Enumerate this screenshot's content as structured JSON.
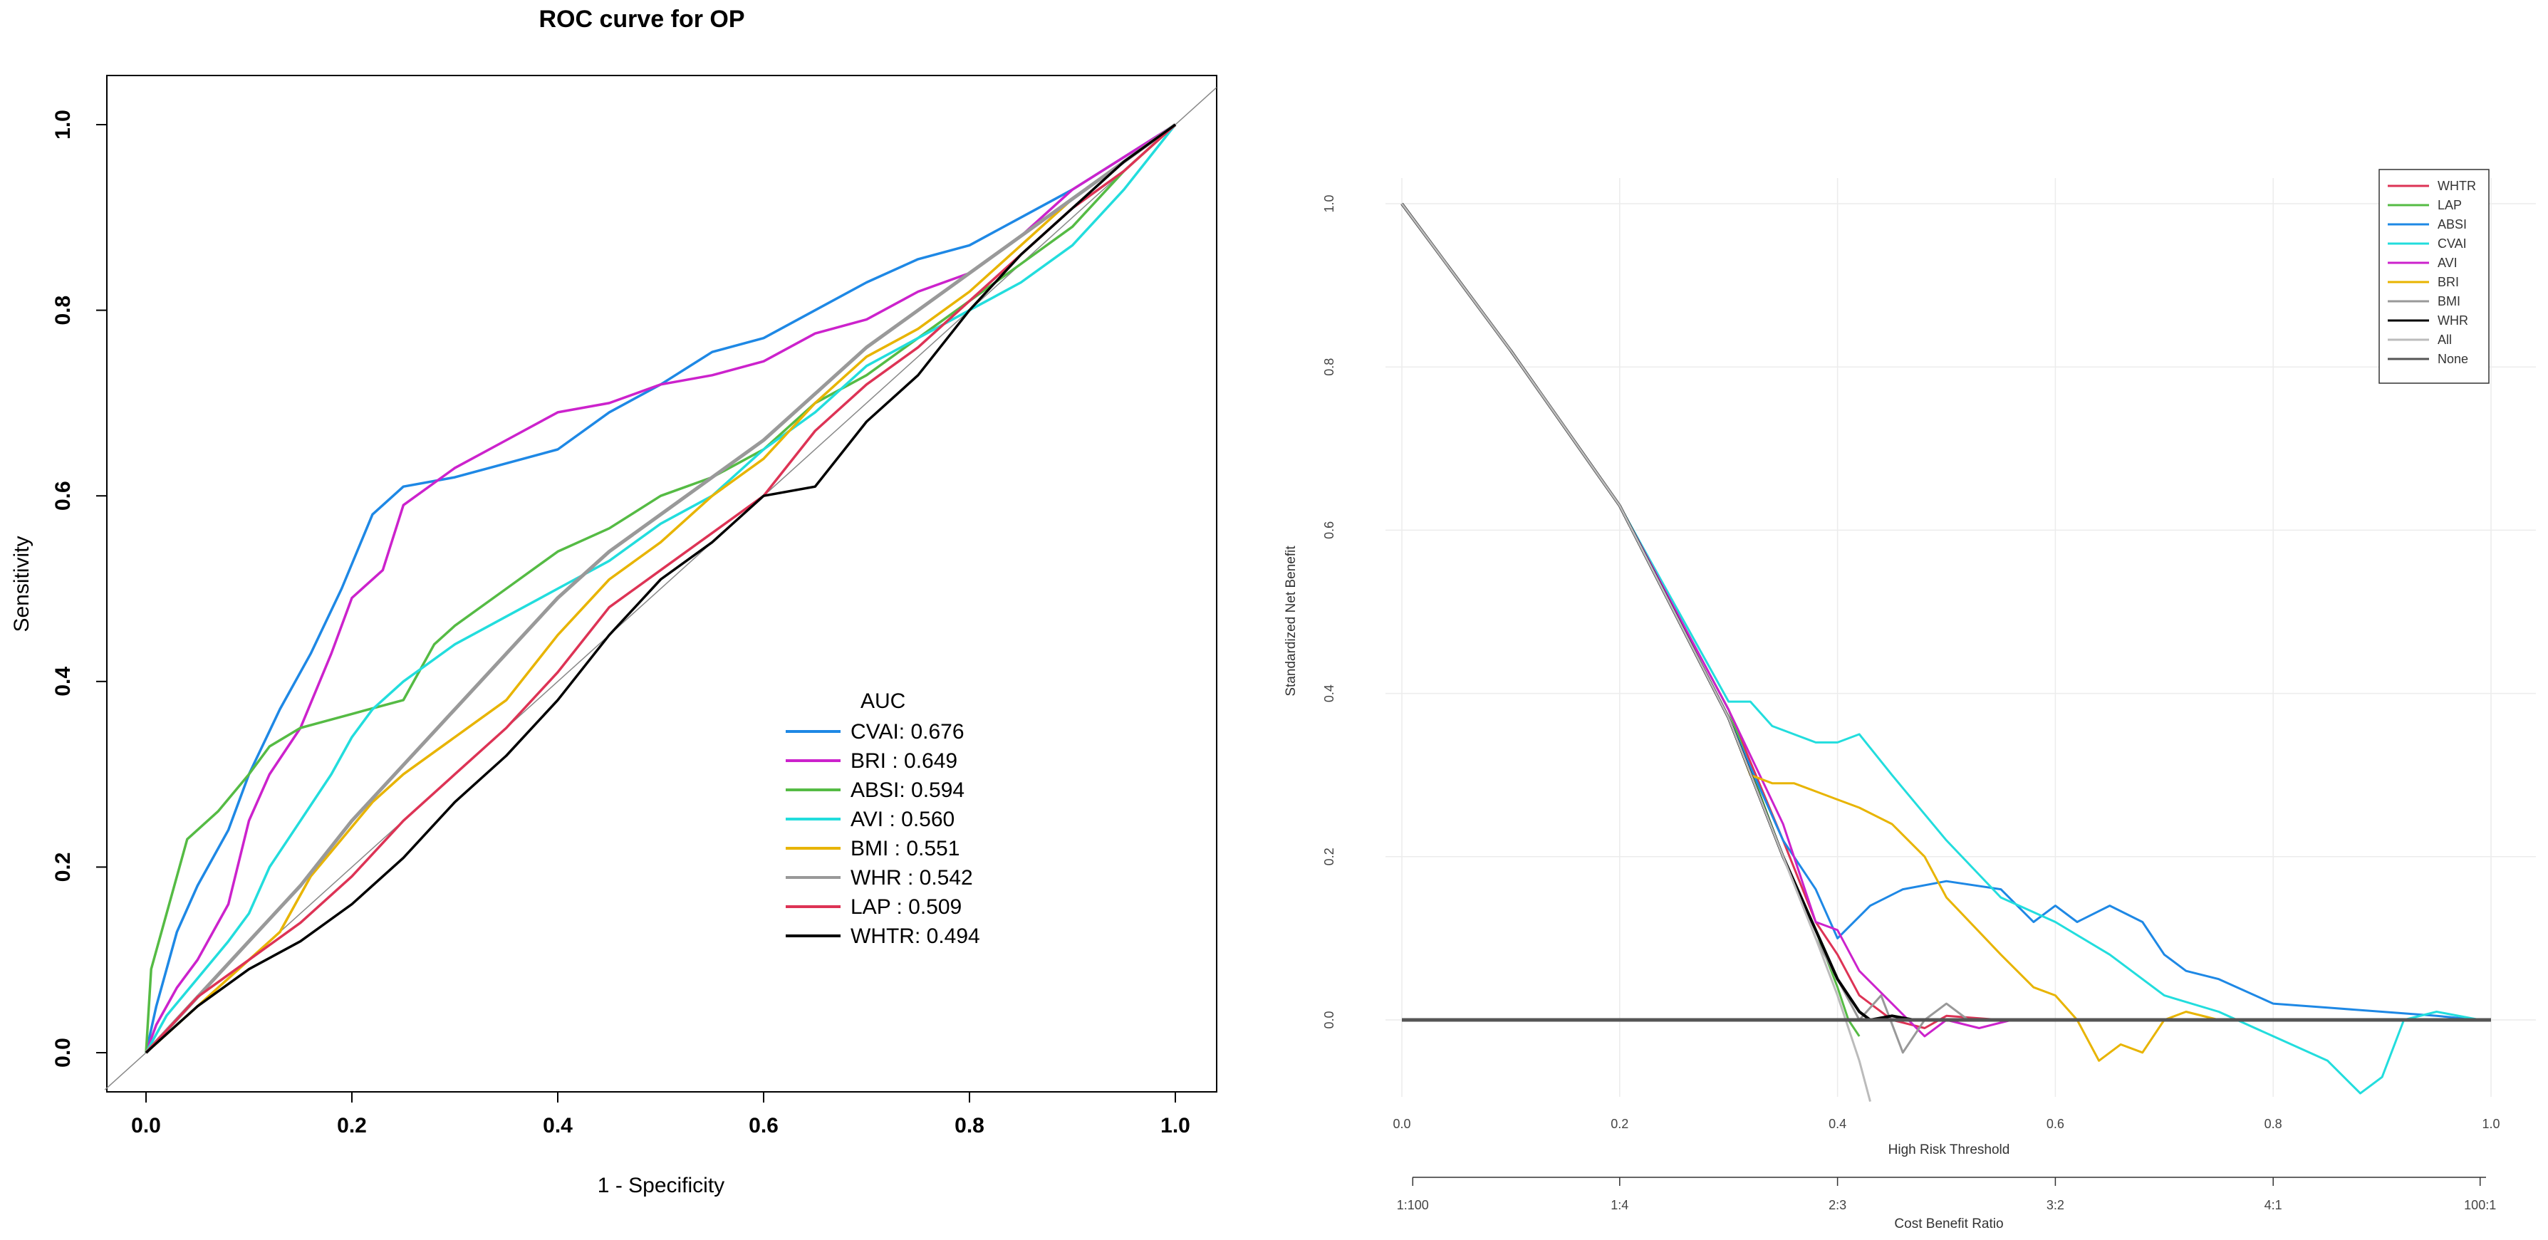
{
  "chart_data": [
    {
      "type": "line",
      "title": "ROC curve for OP",
      "xlabel": "1 - Specificity",
      "ylabel": "Sensitivity",
      "xlim": [
        0,
        1
      ],
      "ylim": [
        0,
        1
      ],
      "xticks": [
        "0.0",
        "0.2",
        "0.4",
        "0.6",
        "0.8",
        "1.0"
      ],
      "yticks": [
        "0.0",
        "0.2",
        "0.4",
        "0.6",
        "0.8",
        "1.0"
      ],
      "legend_title": "AUC",
      "legend_position": "bottom-right",
      "series": [
        {
          "name": "CVAI",
          "label": "CVAI: 0.676",
          "color": "#1e88e5",
          "x": [
            0,
            0.01,
            0.03,
            0.05,
            0.08,
            0.1,
            0.13,
            0.16,
            0.19,
            0.22,
            0.25,
            0.3,
            0.35,
            0.4,
            0.45,
            0.5,
            0.55,
            0.6,
            0.65,
            0.7,
            0.75,
            0.8,
            0.85,
            0.9,
            0.95,
            1.0
          ],
          "y": [
            0,
            0.05,
            0.13,
            0.18,
            0.24,
            0.3,
            0.37,
            0.43,
            0.5,
            0.58,
            0.61,
            0.62,
            0.635,
            0.65,
            0.69,
            0.72,
            0.755,
            0.77,
            0.8,
            0.83,
            0.855,
            0.87,
            0.9,
            0.93,
            0.965,
            1.0
          ]
        },
        {
          "name": "BRI",
          "label": "BRI : 0.649",
          "color": "#cc22cc",
          "x": [
            0,
            0.01,
            0.03,
            0.05,
            0.08,
            0.1,
            0.12,
            0.15,
            0.18,
            0.2,
            0.23,
            0.25,
            0.3,
            0.35,
            0.4,
            0.45,
            0.5,
            0.55,
            0.6,
            0.65,
            0.7,
            0.75,
            0.8,
            0.85,
            0.9,
            0.95,
            1.0
          ],
          "y": [
            0,
            0.03,
            0.07,
            0.1,
            0.16,
            0.25,
            0.3,
            0.35,
            0.43,
            0.49,
            0.52,
            0.59,
            0.63,
            0.66,
            0.69,
            0.7,
            0.72,
            0.73,
            0.745,
            0.775,
            0.79,
            0.82,
            0.84,
            0.88,
            0.93,
            0.965,
            1.0
          ]
        },
        {
          "name": "ABSI",
          "label": "ABSI: 0.594",
          "color": "#55bb44",
          "x": [
            0,
            0.005,
            0.02,
            0.04,
            0.07,
            0.1,
            0.12,
            0.15,
            0.2,
            0.25,
            0.28,
            0.3,
            0.35,
            0.4,
            0.45,
            0.5,
            0.55,
            0.6,
            0.65,
            0.7,
            0.75,
            0.8,
            0.85,
            0.9,
            0.95,
            1.0
          ],
          "y": [
            0,
            0.09,
            0.15,
            0.23,
            0.26,
            0.3,
            0.33,
            0.35,
            0.365,
            0.38,
            0.44,
            0.46,
            0.5,
            0.54,
            0.565,
            0.6,
            0.62,
            0.65,
            0.7,
            0.73,
            0.77,
            0.81,
            0.85,
            0.89,
            0.95,
            1.0
          ]
        },
        {
          "name": "AVI",
          "label": "AVI : 0.560",
          "color": "#22dddd",
          "x": [
            0,
            0.02,
            0.05,
            0.08,
            0.1,
            0.12,
            0.15,
            0.18,
            0.2,
            0.22,
            0.25,
            0.3,
            0.35,
            0.4,
            0.45,
            0.5,
            0.55,
            0.6,
            0.65,
            0.7,
            0.75,
            0.8,
            0.85,
            0.9,
            0.95,
            1.0
          ],
          "y": [
            0,
            0.04,
            0.08,
            0.12,
            0.15,
            0.2,
            0.25,
            0.3,
            0.34,
            0.37,
            0.4,
            0.44,
            0.47,
            0.5,
            0.53,
            0.57,
            0.6,
            0.65,
            0.69,
            0.74,
            0.77,
            0.8,
            0.83,
            0.87,
            0.93,
            1.0
          ]
        },
        {
          "name": "BMI",
          "label": "BMI : 0.551",
          "color": "#e8b400",
          "x": [
            0,
            0.03,
            0.06,
            0.1,
            0.13,
            0.16,
            0.19,
            0.22,
            0.25,
            0.3,
            0.35,
            0.4,
            0.45,
            0.5,
            0.55,
            0.6,
            0.65,
            0.7,
            0.75,
            0.8,
            0.85,
            0.9,
            0.95,
            1.0
          ],
          "y": [
            0,
            0.03,
            0.06,
            0.1,
            0.13,
            0.19,
            0.23,
            0.27,
            0.3,
            0.34,
            0.38,
            0.45,
            0.51,
            0.55,
            0.6,
            0.64,
            0.7,
            0.75,
            0.78,
            0.82,
            0.87,
            0.92,
            0.96,
            1.0
          ]
        },
        {
          "name": "WHR",
          "label": "WHR : 0.542",
          "color": "#999999",
          "x": [
            0,
            0.05,
            0.1,
            0.15,
            0.2,
            0.25,
            0.3,
            0.35,
            0.4,
            0.45,
            0.5,
            0.55,
            0.6,
            0.65,
            0.7,
            0.75,
            0.8,
            0.85,
            0.9,
            0.95,
            1.0
          ],
          "y": [
            0,
            0.06,
            0.12,
            0.18,
            0.25,
            0.31,
            0.37,
            0.43,
            0.49,
            0.54,
            0.58,
            0.62,
            0.66,
            0.71,
            0.76,
            0.8,
            0.84,
            0.88,
            0.92,
            0.96,
            1.0
          ]
        },
        {
          "name": "LAP",
          "label": "LAP : 0.509",
          "color": "#dd3355",
          "x": [
            0,
            0.05,
            0.1,
            0.15,
            0.2,
            0.25,
            0.3,
            0.35,
            0.4,
            0.45,
            0.5,
            0.55,
            0.6,
            0.65,
            0.7,
            0.75,
            0.8,
            0.85,
            0.9,
            0.95,
            1.0
          ],
          "y": [
            0,
            0.06,
            0.1,
            0.14,
            0.19,
            0.25,
            0.3,
            0.35,
            0.41,
            0.48,
            0.52,
            0.56,
            0.6,
            0.67,
            0.72,
            0.76,
            0.81,
            0.86,
            0.91,
            0.95,
            1.0
          ]
        },
        {
          "name": "WHTR",
          "label": "WHTR: 0.494",
          "color": "#000000",
          "x": [
            0,
            0.05,
            0.1,
            0.15,
            0.2,
            0.25,
            0.3,
            0.35,
            0.4,
            0.45,
            0.5,
            0.55,
            0.6,
            0.65,
            0.7,
            0.75,
            0.8,
            0.85,
            0.9,
            0.95,
            1.0
          ],
          "y": [
            0,
            0.05,
            0.09,
            0.12,
            0.16,
            0.21,
            0.27,
            0.32,
            0.38,
            0.45,
            0.51,
            0.55,
            0.6,
            0.61,
            0.68,
            0.73,
            0.8,
            0.86,
            0.91,
            0.96,
            1.0
          ]
        }
      ]
    },
    {
      "type": "line",
      "title": "",
      "xlabel": "High Risk Threshold",
      "ylabel": "Standardized Net Benefit",
      "x2label": "Cost Benefit Ratio",
      "xlim": [
        0,
        1
      ],
      "ylim": [
        -0.1,
        1.0
      ],
      "grid": true,
      "xticks": [
        "0.0",
        "0.2",
        "0.4",
        "0.6",
        "0.8",
        "1.0"
      ],
      "yticks": [
        "0.0",
        "0.2",
        "0.4",
        "0.6",
        "0.8",
        "1.0"
      ],
      "x2ticks": [
        "1:100",
        "1:4",
        "2:3",
        "3:2",
        "4:1",
        "100:1"
      ],
      "legend_position": "top-right",
      "series": [
        {
          "name": "WHTR",
          "color": "#dd3355",
          "x": [
            0,
            0.1,
            0.2,
            0.3,
            0.35,
            0.38,
            0.4,
            0.42,
            0.45,
            0.48,
            0.5,
            0.55,
            0.6,
            0.7,
            0.8,
            1.0
          ],
          "y": [
            1.0,
            0.82,
            0.63,
            0.38,
            0.22,
            0.12,
            0.08,
            0.03,
            0.0,
            -0.01,
            0.005,
            0.0,
            0.0,
            0.0,
            0.0,
            0.0
          ]
        },
        {
          "name": "LAP",
          "color": "#55bb44",
          "x": [
            0,
            0.1,
            0.2,
            0.3,
            0.35,
            0.38,
            0.4,
            0.41,
            0.42
          ],
          "y": [
            1.0,
            0.82,
            0.63,
            0.38,
            0.2,
            0.11,
            0.04,
            0.0,
            -0.02
          ]
        },
        {
          "name": "ABSI",
          "color": "#1e88e5",
          "x": [
            0,
            0.1,
            0.2,
            0.3,
            0.35,
            0.38,
            0.4,
            0.43,
            0.46,
            0.5,
            0.55,
            0.58,
            0.6,
            0.62,
            0.65,
            0.68,
            0.7,
            0.72,
            0.75,
            0.8,
            0.85,
            0.9,
            0.95,
            0.99
          ],
          "y": [
            1.0,
            0.82,
            0.63,
            0.37,
            0.22,
            0.16,
            0.1,
            0.14,
            0.16,
            0.17,
            0.16,
            0.12,
            0.14,
            0.12,
            0.14,
            0.12,
            0.08,
            0.06,
            0.05,
            0.02,
            0.015,
            0.01,
            0.005,
            0.0
          ]
        },
        {
          "name": "CVAI",
          "color": "#22dddd",
          "x": [
            0,
            0.1,
            0.2,
            0.3,
            0.32,
            0.34,
            0.36,
            0.38,
            0.4,
            0.42,
            0.45,
            0.5,
            0.55,
            0.6,
            0.65,
            0.7,
            0.75,
            0.8,
            0.85,
            0.88,
            0.9,
            0.92,
            0.95,
            0.99
          ],
          "y": [
            1.0,
            0.82,
            0.63,
            0.39,
            0.39,
            0.36,
            0.35,
            0.34,
            0.34,
            0.35,
            0.3,
            0.22,
            0.15,
            0.12,
            0.08,
            0.03,
            0.01,
            -0.02,
            -0.05,
            -0.09,
            -0.07,
            0.0,
            0.01,
            0.0
          ]
        },
        {
          "name": "AVI",
          "color": "#cc22cc",
          "x": [
            0,
            0.1,
            0.2,
            0.3,
            0.35,
            0.38,
            0.4,
            0.42,
            0.45,
            0.48,
            0.5,
            0.53,
            0.56,
            0.58
          ],
          "y": [
            1.0,
            0.82,
            0.63,
            0.38,
            0.24,
            0.12,
            0.11,
            0.06,
            0.02,
            -0.02,
            0.0,
            -0.01,
            0.0,
            0.0
          ]
        },
        {
          "name": "BRI",
          "color": "#e8b400",
          "x": [
            0,
            0.1,
            0.2,
            0.3,
            0.32,
            0.34,
            0.36,
            0.38,
            0.4,
            0.42,
            0.45,
            0.48,
            0.5,
            0.55,
            0.58,
            0.6,
            0.62,
            0.64,
            0.66,
            0.68,
            0.7,
            0.72,
            0.75,
            0.78,
            0.8,
            0.82
          ],
          "y": [
            1.0,
            0.82,
            0.63,
            0.37,
            0.3,
            0.29,
            0.29,
            0.28,
            0.27,
            0.26,
            0.24,
            0.2,
            0.15,
            0.08,
            0.04,
            0.03,
            0.0,
            -0.05,
            -0.03,
            -0.04,
            0.0,
            0.01,
            0.0,
            0.0,
            0.0,
            0.0
          ]
        },
        {
          "name": "BMI",
          "color": "#999999",
          "x": [
            0,
            0.1,
            0.2,
            0.3,
            0.35,
            0.38,
            0.4,
            0.42,
            0.44,
            0.46,
            0.48,
            0.5,
            0.52,
            0.55
          ],
          "y": [
            1.0,
            0.82,
            0.63,
            0.37,
            0.2,
            0.1,
            0.05,
            0.0,
            0.03,
            -0.04,
            0.0,
            0.02,
            0.0,
            0.0
          ]
        },
        {
          "name": "WHR",
          "color": "#000000",
          "x": [
            0,
            0.1,
            0.2,
            0.3,
            0.35,
            0.38,
            0.4,
            0.42,
            0.43,
            0.45,
            0.47,
            0.5,
            0.55,
            0.6
          ],
          "y": [
            1.0,
            0.82,
            0.63,
            0.37,
            0.2,
            0.11,
            0.05,
            0.01,
            0.0,
            0.005,
            0.0,
            0.0,
            0.0,
            0.0
          ]
        },
        {
          "name": "All",
          "color": "#bbbbbb",
          "x": [
            0,
            0.1,
            0.2,
            0.3,
            0.35,
            0.38,
            0.4,
            0.42,
            0.43
          ],
          "y": [
            1.0,
            0.82,
            0.63,
            0.37,
            0.2,
            0.1,
            0.03,
            -0.05,
            -0.1
          ]
        },
        {
          "name": "None",
          "color": "#555555",
          "x": [
            0,
            1.0
          ],
          "y": [
            0,
            0
          ]
        }
      ]
    }
  ]
}
